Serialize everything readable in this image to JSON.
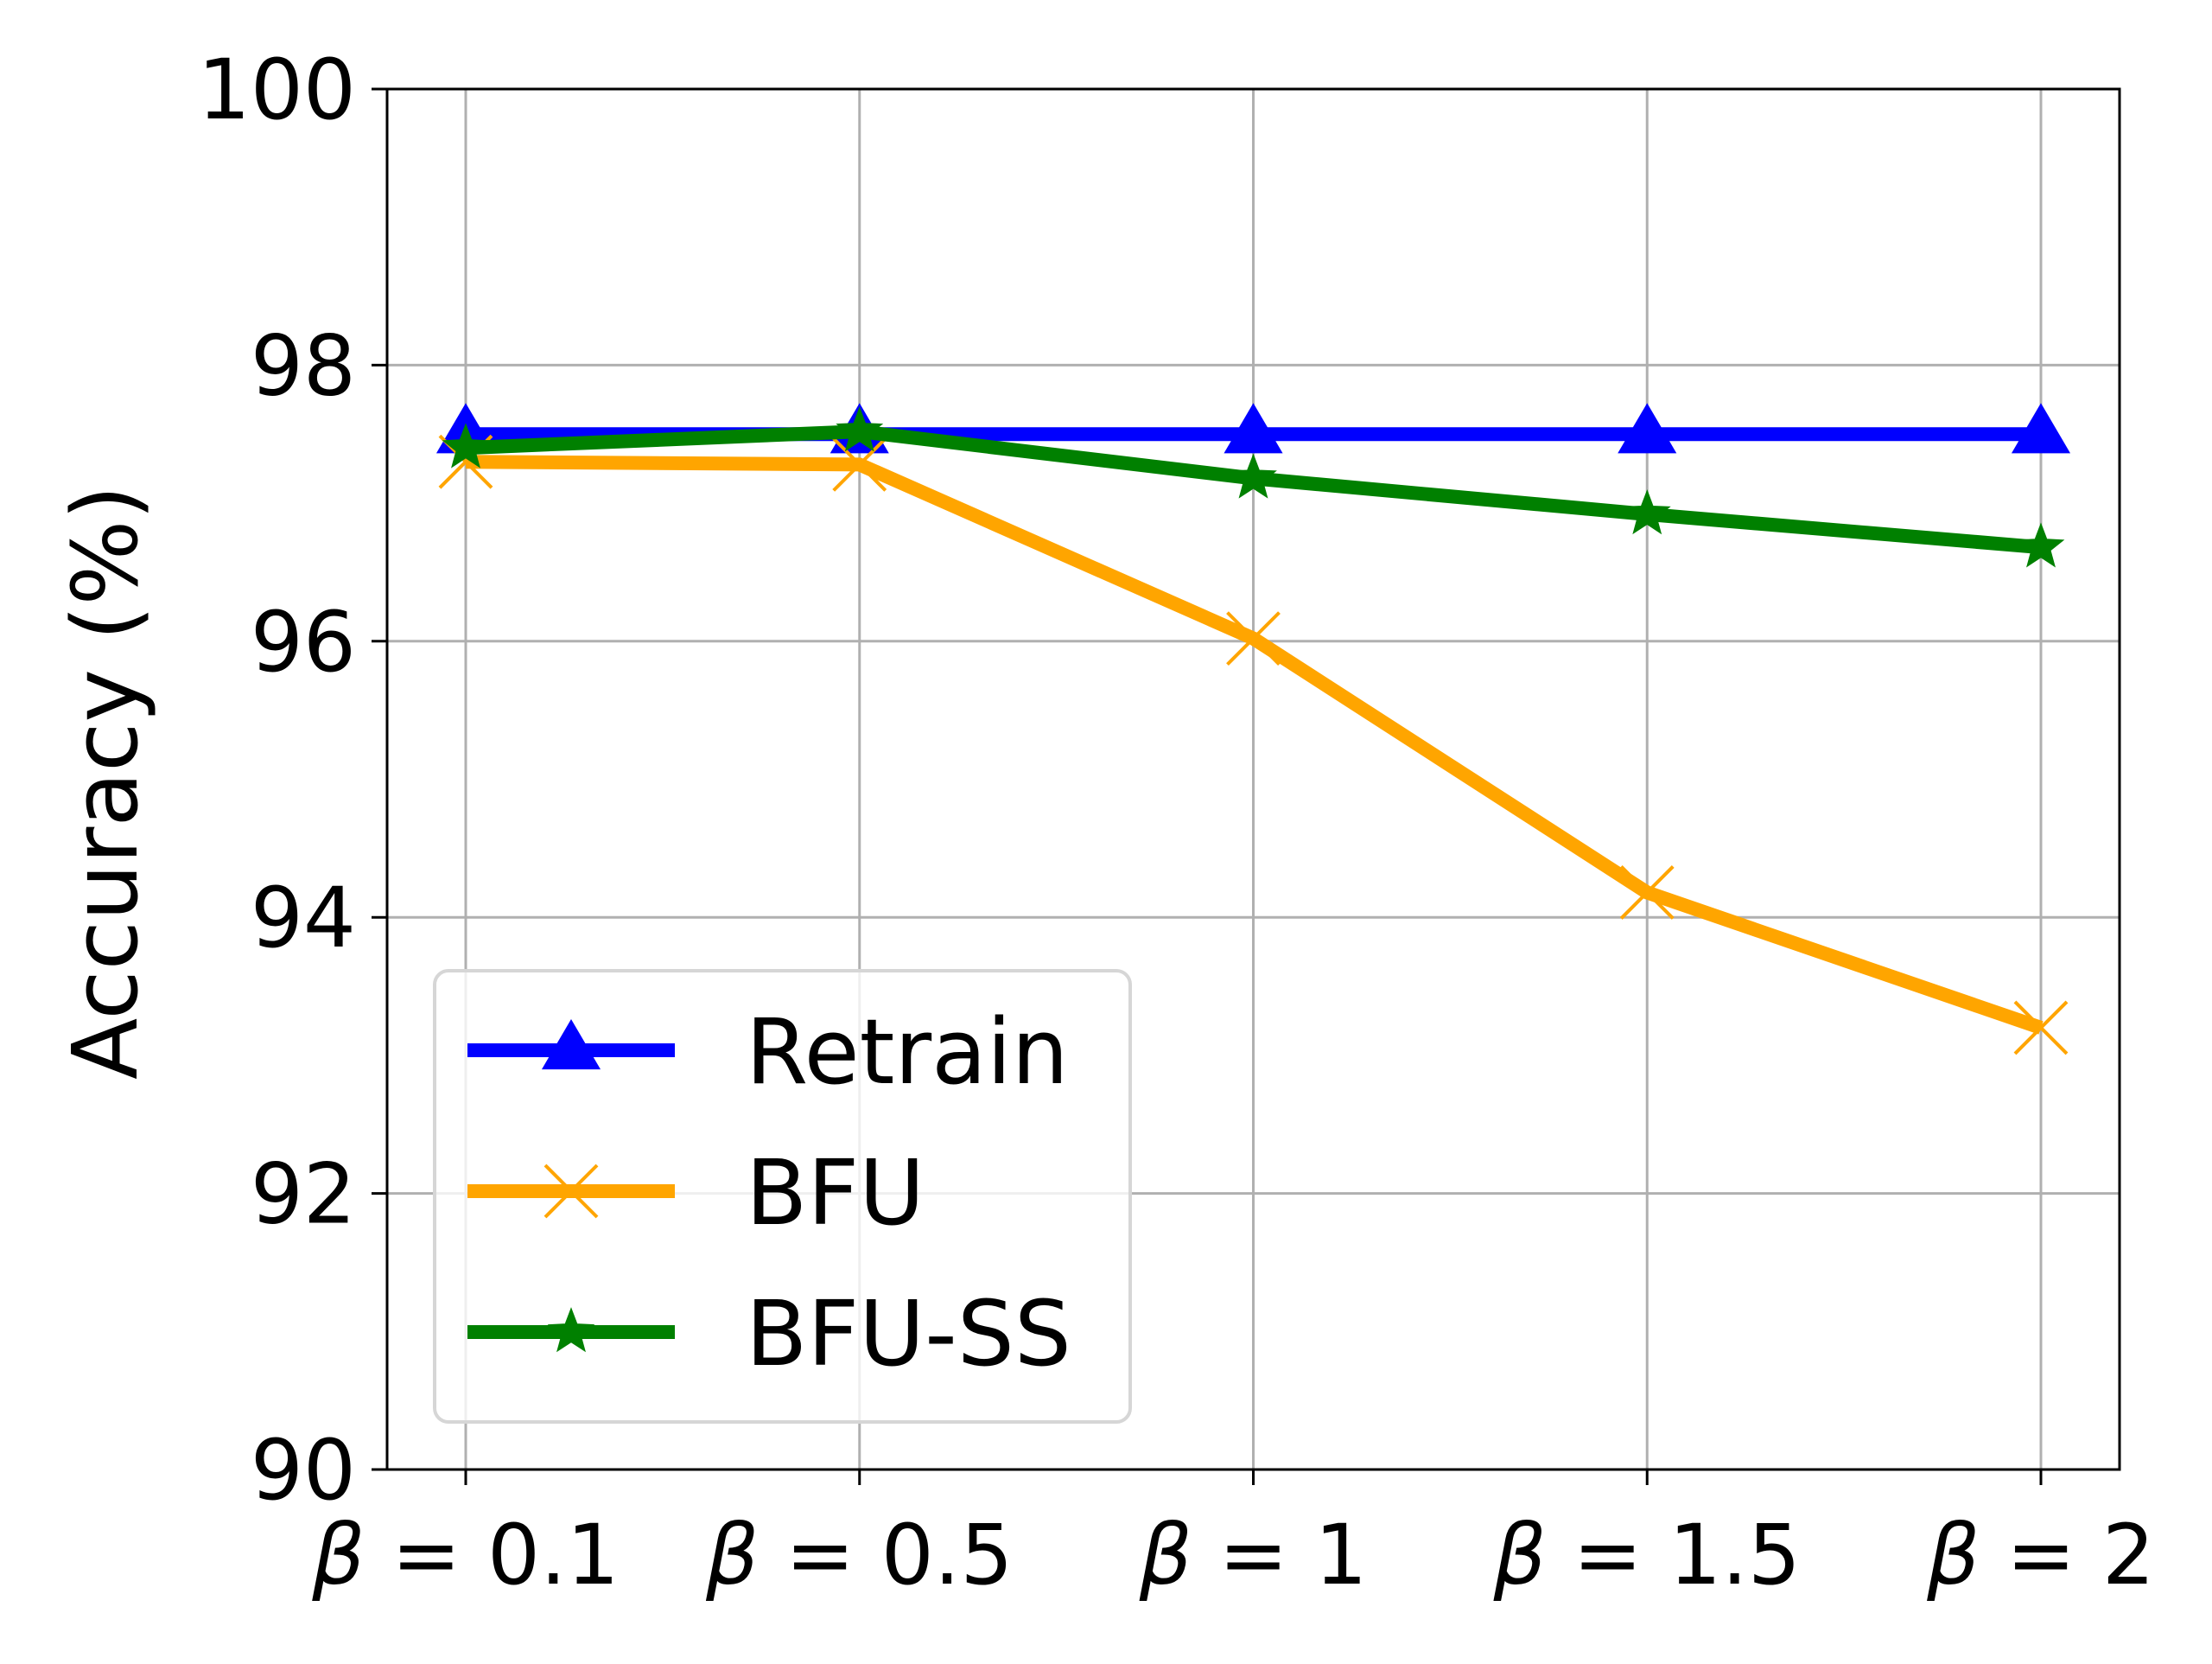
{
  "chart_data": {
    "type": "line",
    "title": "",
    "xlabel": "",
    "ylabel": "Accuracy (%)",
    "categories": [
      "β = 0.1",
      "β = 0.5",
      "β = 1",
      "β = 1.5",
      "β = 2"
    ],
    "category_parts": [
      {
        "symbol": "β",
        "rest": " = 0.1"
      },
      {
        "symbol": "β",
        "rest": " = 0.5"
      },
      {
        "symbol": "β",
        "rest": " = 1"
      },
      {
        "symbol": "β",
        "rest": " = 1.5"
      },
      {
        "symbol": "β",
        "rest": " = 2"
      }
    ],
    "ylim": [
      90,
      100
    ],
    "yticks": [
      90,
      92,
      94,
      96,
      98,
      100
    ],
    "ytick_labels": [
      "90",
      "92",
      "94",
      "96",
      "98",
      "100"
    ],
    "grid": true,
    "legend_position": "lower-left",
    "series": [
      {
        "name": "Retrain",
        "color": "#0000ff",
        "marker": "triangle",
        "values": [
          97.5,
          97.5,
          97.5,
          97.5,
          97.5
        ]
      },
      {
        "name": "BFU",
        "color": "#ffa500",
        "marker": "x",
        "values": [
          97.3,
          97.28,
          96.02,
          94.18,
          93.2
        ]
      },
      {
        "name": "BFU-SS",
        "color": "#008000",
        "marker": "star",
        "values": [
          97.4,
          97.52,
          97.18,
          96.92,
          96.68
        ]
      }
    ]
  }
}
